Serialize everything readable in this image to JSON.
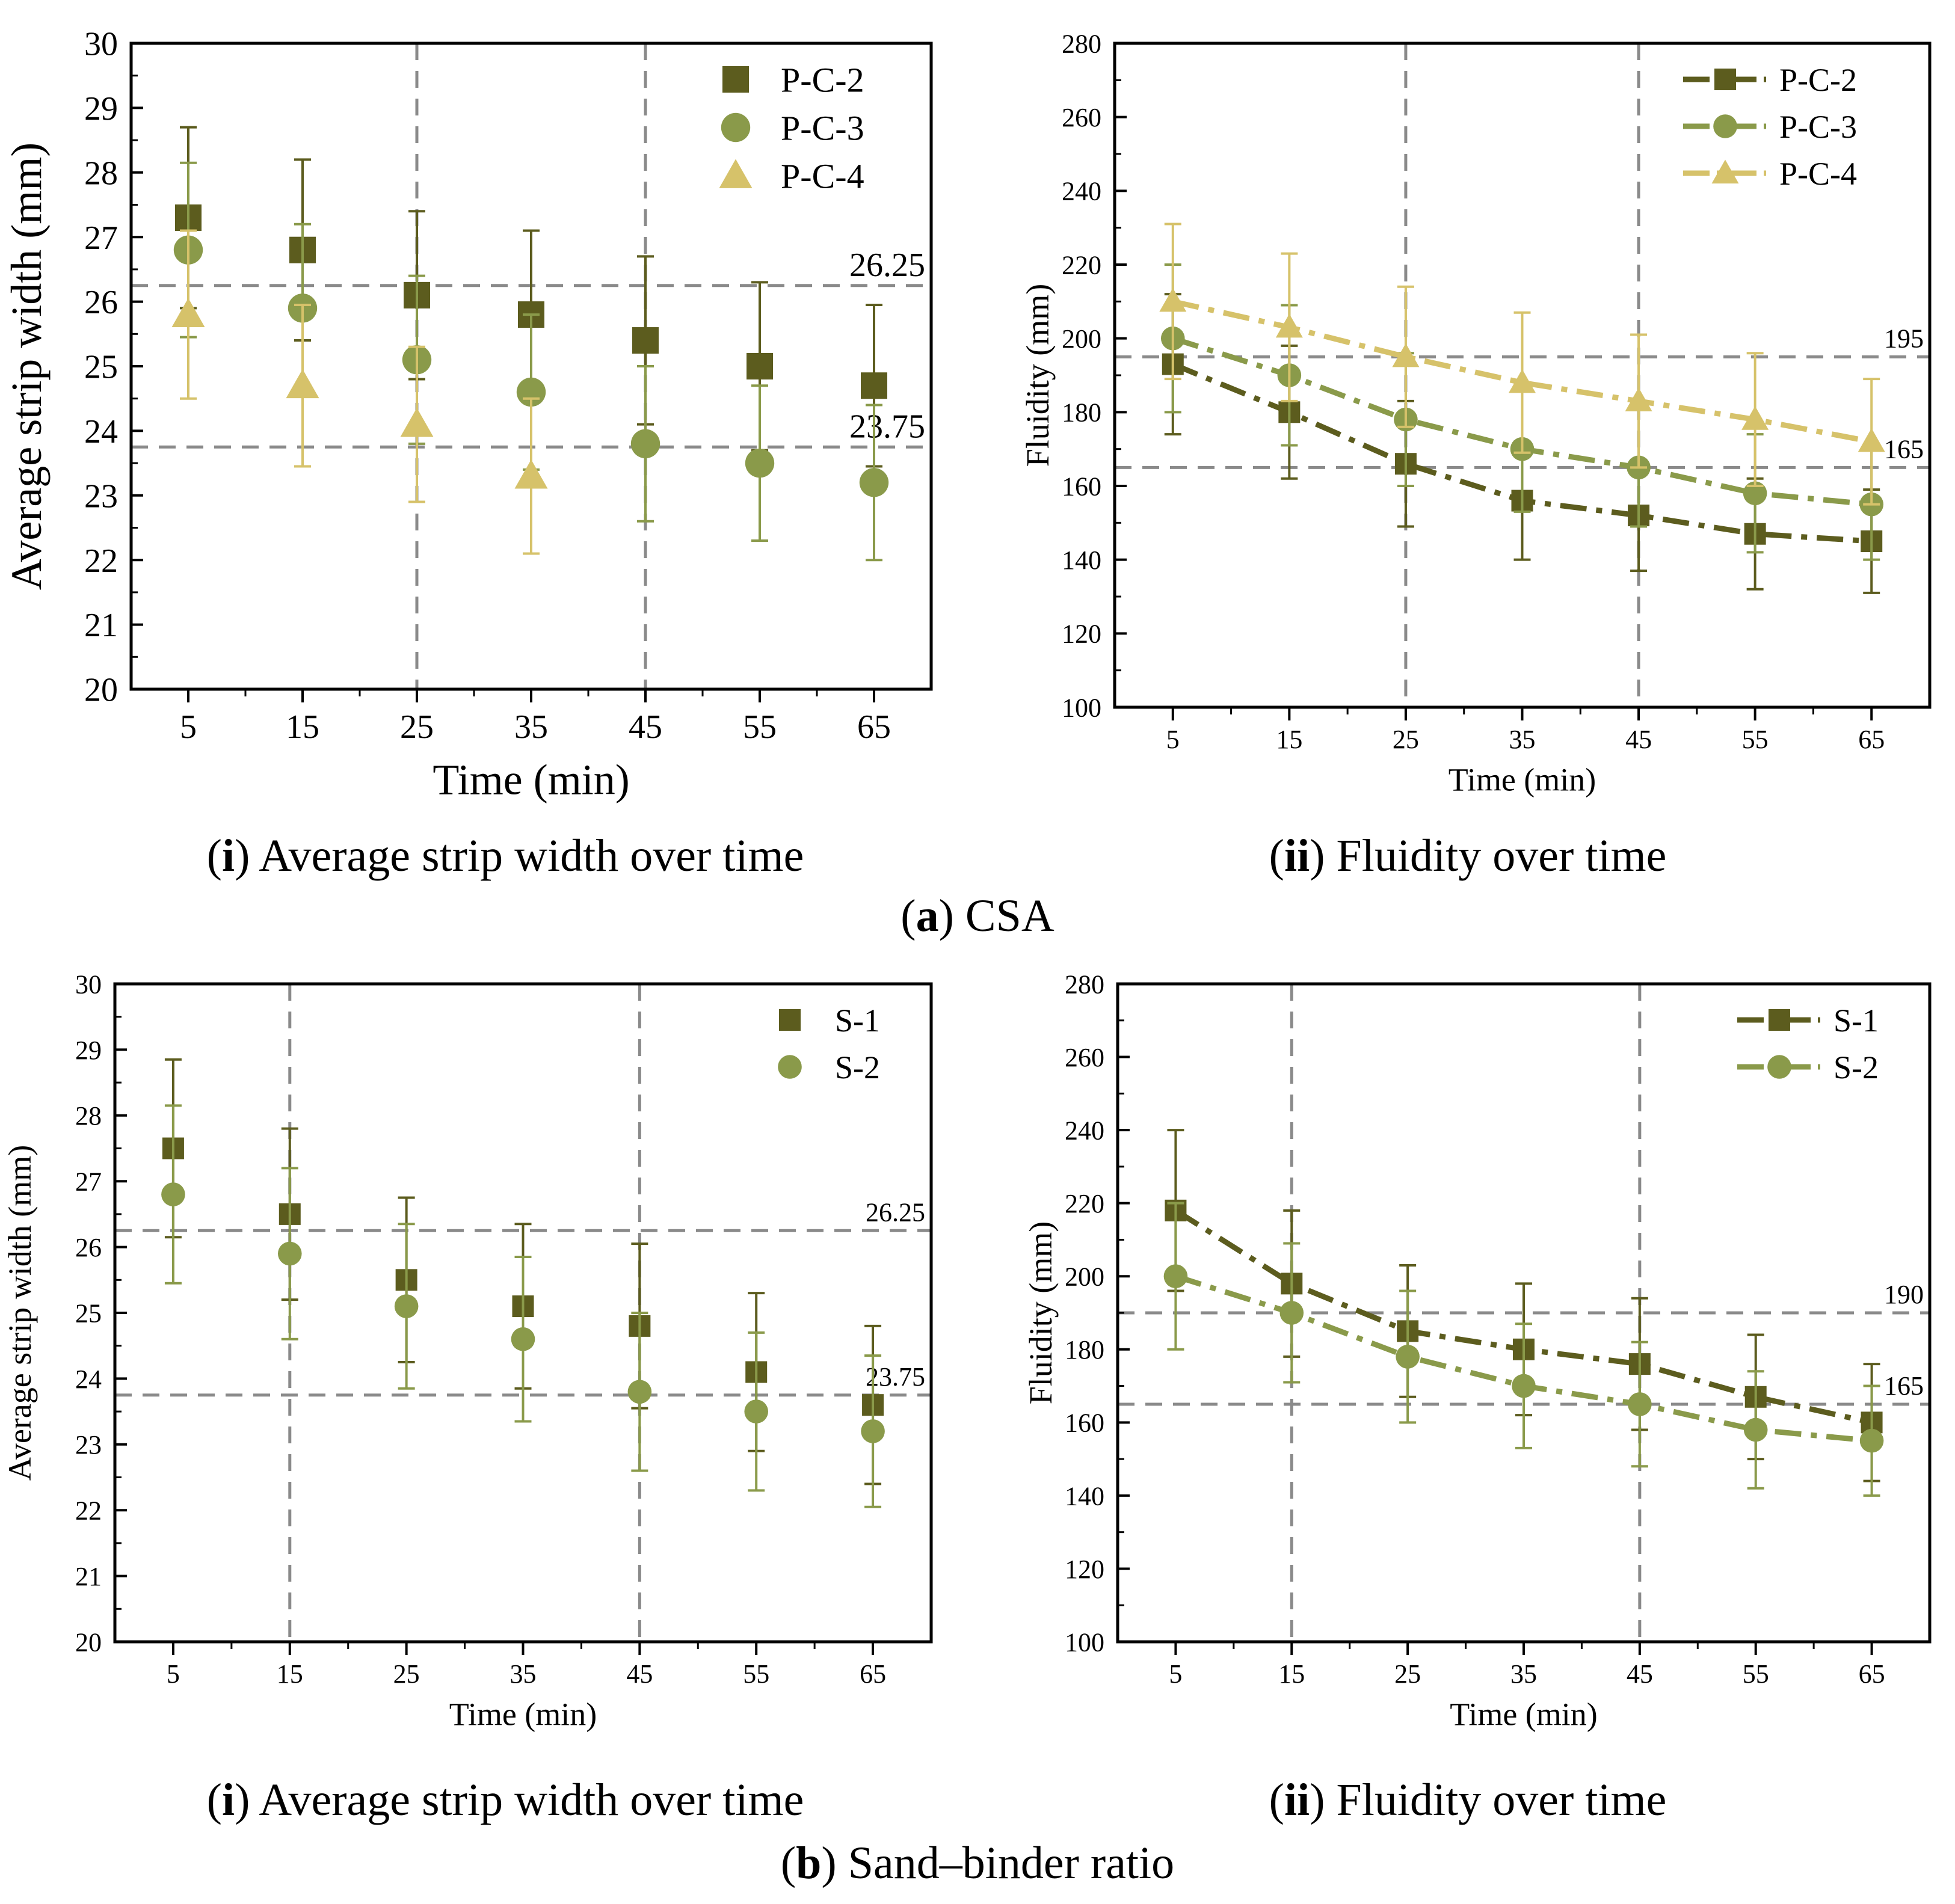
{
  "figure": {
    "panel_a_caption": {
      "letter": "a",
      "text": "CSA"
    },
    "panel_b_caption": {
      "letter": "b",
      "text": "Sand–binder ratio"
    },
    "sub_i_caption": {
      "numeral": "i",
      "text": "Average strip width over time"
    },
    "sub_ii_caption": {
      "numeral": "ii",
      "text": "Fluidity over time"
    }
  },
  "colors": {
    "dark": "#5c5c1e",
    "mid": "#8a9a4a",
    "light": "#d6c26a",
    "ref": "#8a8a8a"
  },
  "chart_data": [
    {
      "id": "a-i",
      "type": "scatter",
      "title": "",
      "xlabel": "Time (min)",
      "ylabel": "Average strip width (mm)",
      "x": [
        5,
        15,
        25,
        35,
        45,
        55,
        65
      ],
      "xlim": [
        0,
        70
      ],
      "ylim": [
        20,
        30
      ],
      "yticks": [
        20,
        21,
        22,
        23,
        24,
        25,
        26,
        27,
        28,
        29,
        30
      ],
      "vlines": [
        25,
        45
      ],
      "hlines": [
        {
          "y": 26.25,
          "label": "26.25"
        },
        {
          "y": 23.75,
          "label": "23.75"
        }
      ],
      "legend": "top-right",
      "series": [
        {
          "name": "P-C-2",
          "marker": "square",
          "color": "dark",
          "values": [
            27.3,
            26.8,
            26.1,
            25.8,
            25.4,
            25.0,
            24.7
          ],
          "err": [
            1.4,
            1.4,
            1.3,
            1.3,
            1.3,
            1.3,
            1.25
          ]
        },
        {
          "name": "P-C-3",
          "marker": "circle",
          "color": "mid",
          "values": [
            26.8,
            25.9,
            25.1,
            24.6,
            23.8,
            23.5,
            23.2
          ],
          "err": [
            1.35,
            1.3,
            1.3,
            1.2,
            1.2,
            1.2,
            1.2
          ]
        },
        {
          "name": "P-C-4",
          "marker": "triangle",
          "color": "light",
          "values": [
            25.8,
            24.7,
            24.1,
            23.3,
            null,
            null,
            null
          ],
          "err": [
            1.3,
            1.25,
            1.2,
            1.2,
            null,
            null,
            null
          ]
        }
      ]
    },
    {
      "id": "a-ii",
      "type": "line",
      "title": "",
      "xlabel": "Time (min)",
      "ylabel": "Fluidity (mm)",
      "x": [
        5,
        15,
        25,
        35,
        45,
        55,
        65
      ],
      "xlim": [
        0,
        70
      ],
      "ylim": [
        100,
        280
      ],
      "yticks": [
        100,
        120,
        140,
        160,
        180,
        200,
        220,
        240,
        260,
        280
      ],
      "vlines": [
        25,
        45
      ],
      "hlines": [
        {
          "y": 195,
          "label": "195"
        },
        {
          "y": 165,
          "label": "165"
        }
      ],
      "legend": "top-right",
      "series": [
        {
          "name": "P-C-2",
          "marker": "square",
          "color": "dark",
          "values": [
            193,
            180,
            166,
            156,
            152,
            147,
            145
          ],
          "err": [
            19,
            18,
            17,
            16,
            15,
            15,
            14
          ]
        },
        {
          "name": "P-C-3",
          "marker": "circle",
          "color": "mid",
          "values": [
            200,
            190,
            178,
            170,
            165,
            158,
            155
          ],
          "err": [
            20,
            19,
            18,
            17,
            16,
            16,
            15
          ]
        },
        {
          "name": "P-C-4",
          "marker": "triangle",
          "color": "light",
          "values": [
            210,
            203,
            195,
            188,
            183,
            178,
            172
          ],
          "err": [
            21,
            20,
            19,
            19,
            18,
            18,
            17
          ]
        }
      ]
    },
    {
      "id": "b-i",
      "type": "scatter",
      "title": "",
      "xlabel": "Time (min)",
      "ylabel": "Average strip width (mm)",
      "x": [
        5,
        15,
        25,
        35,
        45,
        55,
        65
      ],
      "xlim": [
        0,
        70
      ],
      "ylim": [
        20,
        30
      ],
      "yticks": [
        20,
        21,
        22,
        23,
        24,
        25,
        26,
        27,
        28,
        29,
        30
      ],
      "vlines": [
        15,
        45
      ],
      "hlines": [
        {
          "y": 26.25,
          "label": "26.25"
        },
        {
          "y": 23.75,
          "label": "23.75"
        }
      ],
      "legend": "top-right",
      "series": [
        {
          "name": "S-1",
          "marker": "square",
          "color": "dark",
          "values": [
            27.5,
            26.5,
            25.5,
            25.1,
            24.8,
            24.1,
            23.6
          ],
          "err": [
            1.35,
            1.3,
            1.25,
            1.25,
            1.25,
            1.2,
            1.2
          ]
        },
        {
          "name": "S-2",
          "marker": "circle",
          "color": "mid",
          "values": [
            26.8,
            25.9,
            25.1,
            24.6,
            23.8,
            23.5,
            23.2
          ],
          "err": [
            1.35,
            1.3,
            1.25,
            1.25,
            1.2,
            1.2,
            1.15
          ]
        }
      ]
    },
    {
      "id": "b-ii",
      "type": "line",
      "title": "",
      "xlabel": "Time (min)",
      "ylabel": "Fluidity (mm)",
      "x": [
        5,
        15,
        25,
        35,
        45,
        55,
        65
      ],
      "xlim": [
        0,
        70
      ],
      "ylim": [
        100,
        280
      ],
      "yticks": [
        100,
        120,
        140,
        160,
        180,
        200,
        220,
        240,
        260,
        280
      ],
      "vlines": [
        15,
        45
      ],
      "hlines": [
        {
          "y": 190,
          "label": "190"
        },
        {
          "y": 165,
          "label": "165"
        }
      ],
      "legend": "top-right",
      "series": [
        {
          "name": "S-1",
          "marker": "square",
          "color": "dark",
          "values": [
            218,
            198,
            185,
            180,
            176,
            167,
            160
          ],
          "err": [
            22,
            20,
            18,
            18,
            18,
            17,
            16
          ]
        },
        {
          "name": "S-2",
          "marker": "circle",
          "color": "mid",
          "values": [
            200,
            190,
            178,
            170,
            165,
            158,
            155
          ],
          "err": [
            20,
            19,
            18,
            17,
            17,
            16,
            15
          ]
        }
      ]
    }
  ]
}
